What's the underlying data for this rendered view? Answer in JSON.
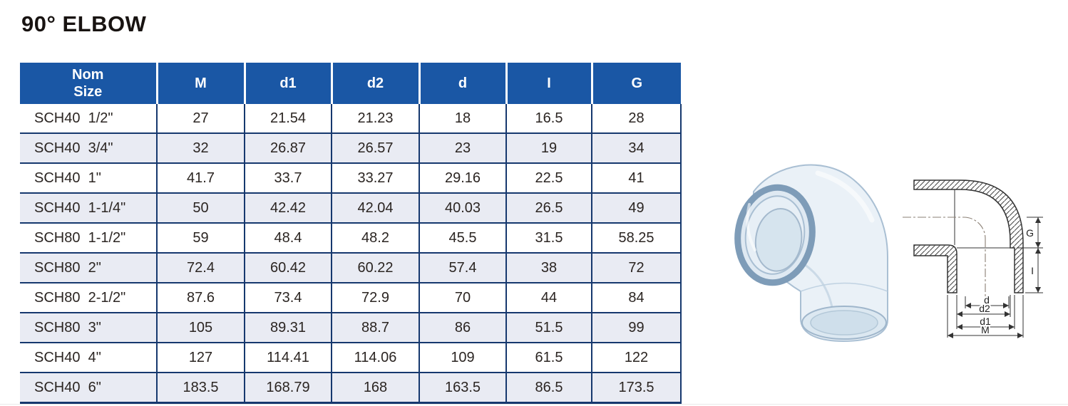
{
  "title": "90° ELBOW",
  "table": {
    "columns": [
      "Nom\nSize",
      "M",
      "d1",
      "d2",
      "d",
      "I",
      "G"
    ],
    "rows": [
      {
        "size": "SCH40  1/2\"",
        "values": [
          "27",
          "21.54",
          "21.23",
          "18",
          "16.5",
          "28"
        ]
      },
      {
        "size": "SCH40  3/4\"",
        "values": [
          "32",
          "26.87",
          "26.57",
          "23",
          "19",
          "34"
        ]
      },
      {
        "size": "SCH40  1\"",
        "values": [
          "41.7",
          "33.7",
          "33.27",
          "29.16",
          "22.5",
          "41"
        ]
      },
      {
        "size": "SCH40  1-1/4\"",
        "values": [
          "50",
          "42.42",
          "42.04",
          "40.03",
          "26.5",
          "49"
        ]
      },
      {
        "size": "SCH80  1-1/2\"",
        "values": [
          "59",
          "48.4",
          "48.2",
          "45.5",
          "31.5",
          "58.25"
        ]
      },
      {
        "size": "SCH80  2\"",
        "values": [
          "72.4",
          "60.42",
          "60.22",
          "57.4",
          "38",
          "72"
        ]
      },
      {
        "size": "SCH80  2-1/2\"",
        "values": [
          "87.6",
          "73.4",
          "72.9",
          "70",
          "44",
          "84"
        ]
      },
      {
        "size": "SCH80  3\"",
        "values": [
          "105",
          "89.31",
          "88.7",
          "86",
          "51.5",
          "99"
        ]
      },
      {
        "size": "SCH40  4\"",
        "values": [
          "127",
          "114.41",
          "114.06",
          "109",
          "61.5",
          "122"
        ]
      },
      {
        "size": "SCH40  6\"",
        "values": [
          "183.5",
          "168.79",
          "168",
          "163.5",
          "86.5",
          "173.5"
        ]
      }
    ]
  },
  "drawing": {
    "labels": {
      "g": "G",
      "i": "I",
      "d": "d",
      "d2": "d2",
      "d1": "d1",
      "m": "M"
    }
  },
  "colors": {
    "header_blue": "#1a57a5",
    "row_alt": "#e9ebf3",
    "line_navy": "#16386e"
  }
}
